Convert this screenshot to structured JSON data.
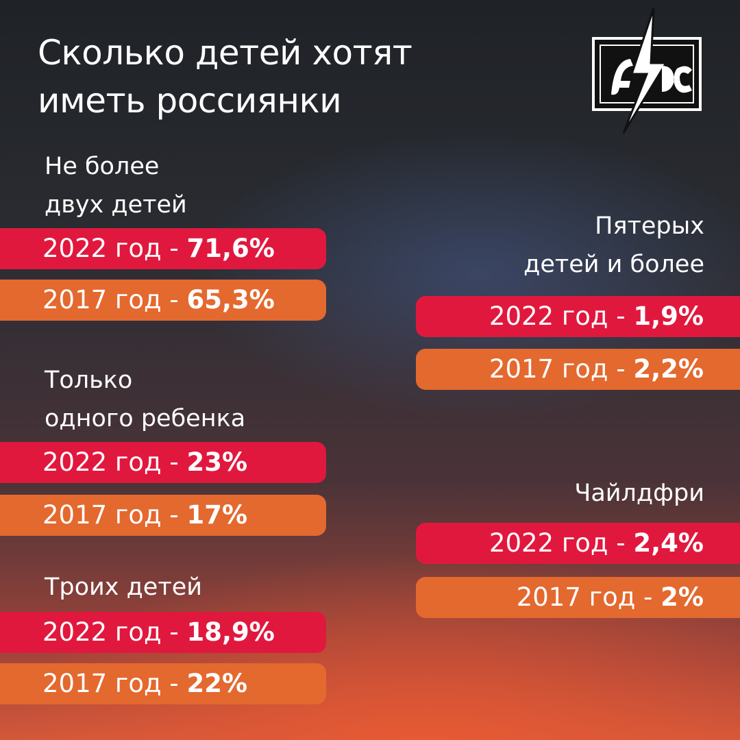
{
  "title": [
    "Сколько детей хотят",
    "иметь россиянки"
  ],
  "groups": [
    {
      "heading": [
        "Не более",
        "двух детей"
      ],
      "rows": [
        {
          "label": "2022 год -",
          "value": "71,6%"
        },
        {
          "label": "2017 год -",
          "value": "65,3%"
        }
      ]
    },
    {
      "heading": [
        "Только",
        "одного ребенка"
      ],
      "rows": [
        {
          "label": "2022 год -",
          "value": "23%"
        },
        {
          "label": "2017 год -",
          "value": "17%"
        }
      ]
    },
    {
      "heading": [
        "Троих детей"
      ],
      "rows": [
        {
          "label": "2022 год -",
          "value": "18,9%"
        },
        {
          "label": "2017 год -",
          "value": "22%"
        }
      ]
    },
    {
      "heading": [
        "Пятерых",
        "детей и более"
      ],
      "rows": [
        {
          "label": "2022 год -",
          "value": "1,9%"
        },
        {
          "label": "2017 год -",
          "value": "2,2%"
        }
      ]
    },
    {
      "heading": [
        "Чайлдфри"
      ],
      "rows": [
        {
          "label": "2022 год -",
          "value": "2,4%"
        },
        {
          "label": "2017 год -",
          "value": "2%"
        }
      ]
    }
  ]
}
